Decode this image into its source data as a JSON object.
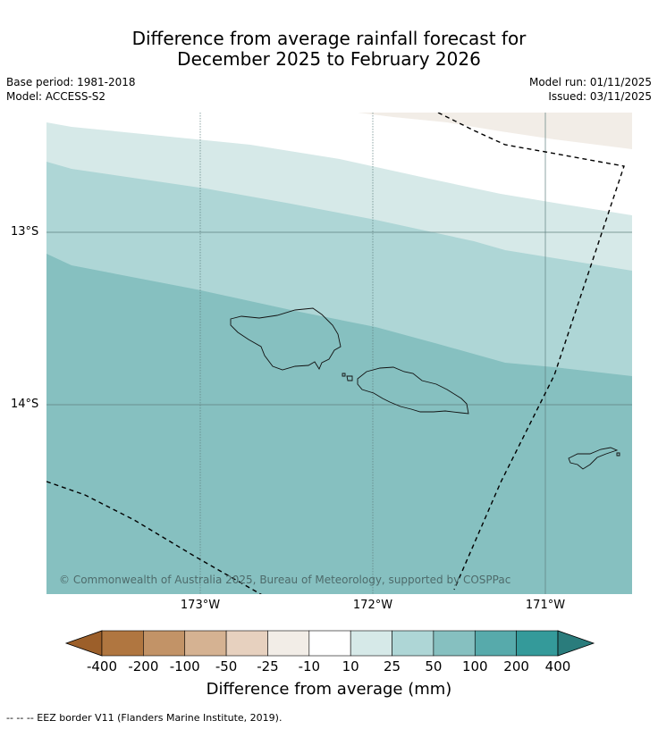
{
  "title_line1": "Difference from average rainfall forecast for",
  "title_line2": "December 2025 to February 2026",
  "base_period": "Base period: 1981-2018",
  "model": "Model: ACCESS-S2",
  "model_run": "Model run: 01/11/2025",
  "issued": "Issued: 03/11/2025",
  "copyright": "© Commonwealth of Australia 2025, Bureau of Meteorology, supported by COSPPac",
  "lat_labels": [
    "13°S",
    "14°S"
  ],
  "lon_labels": [
    "173°W",
    "172°W",
    "171°W"
  ],
  "colorbar": {
    "title": "Difference from average (mm)",
    "ticks": [
      "-400",
      "-200",
      "-100",
      "-50",
      "-25",
      "-10",
      "10",
      "25",
      "50",
      "100",
      "200",
      "400"
    ],
    "colors": [
      "#9c5f2a",
      "#b07640",
      "#c29367",
      "#d5b292",
      "#e7d1bf",
      "#f2ede7",
      "#ffffff",
      "#d6e9e8",
      "#aed6d6",
      "#86c0c0",
      "#57aaab",
      "#349a9a",
      "#2a7c7c"
    ]
  },
  "map_colors": {
    "light": "#d6e9e8",
    "mid": "#aed6d6",
    "dark": "#86c0c0",
    "warm": "#f2ede7"
  },
  "footer": "--  --  -- EEZ border V11 (Flanders Marine Institute, 2019)."
}
